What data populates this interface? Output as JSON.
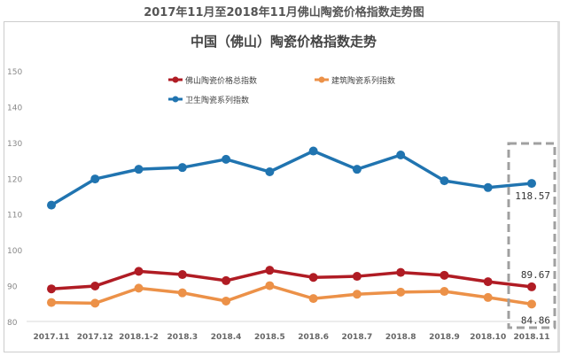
{
  "outer_title": "2017年11月至2018年11月佛山陶瓷价格指数走势图",
  "chart_data": {
    "type": "line",
    "title": "中国（佛山）陶瓷价格指数走势",
    "categories": [
      "2017.11",
      "2017.12",
      "2018.1-2",
      "2018.3",
      "2018.4",
      "2018.5",
      "2018.6",
      "2018.7",
      "2018.8",
      "2018.9",
      "2018.10",
      "2018.11"
    ],
    "ylim": [
      80,
      150
    ],
    "yticks": [
      "80",
      "90",
      "100",
      "110",
      "120",
      "130",
      "140",
      "150"
    ],
    "grid": false,
    "legend_placement": "top",
    "series": [
      {
        "name": "佛山陶瓷价格总指数",
        "color": "#b01c24",
        "values": [
          89.1,
          89.9,
          94.0,
          93.1,
          91.4,
          94.3,
          92.3,
          92.6,
          93.7,
          92.9,
          91.1,
          89.67
        ]
      },
      {
        "name": "建筑陶瓷系列指数",
        "color": "#ec9148",
        "values": [
          85.3,
          85.1,
          89.3,
          88.0,
          85.7,
          90.0,
          86.4,
          87.6,
          88.2,
          88.4,
          86.7,
          84.86
        ]
      },
      {
        "name": "卫生陶瓷系列指数",
        "color": "#2074b0",
        "values": [
          112.5,
          119.8,
          122.5,
          123.0,
          125.3,
          121.8,
          127.6,
          122.5,
          126.5,
          119.3,
          117.4,
          118.57
        ]
      }
    ],
    "annotations": [
      "118.57",
      "89.67",
      "84.86"
    ],
    "highlight_box_color": "#a0a0a0"
  }
}
